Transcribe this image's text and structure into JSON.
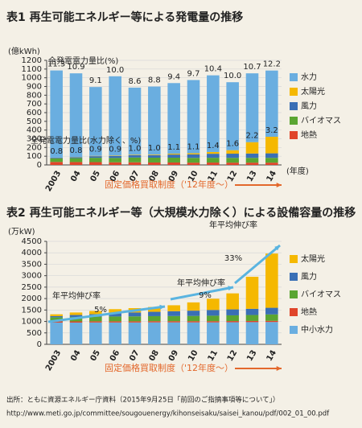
{
  "chart_data": [
    {
      "type": "bar",
      "stacked": true,
      "title": "表1 再生可能エネルギー等による発電量の推移",
      "ylabel": "(億kWh)",
      "xlabel": "(年度)",
      "categories": [
        "2003",
        "04",
        "05",
        "06",
        "07",
        "08",
        "09",
        "10",
        "11",
        "12",
        "13",
        "14"
      ],
      "series": [
        {
          "name": "水力",
          "color": "#6aaee0",
          "values": [
            1000,
            960,
            790,
            910,
            770,
            780,
            810,
            840,
            880,
            780,
            790,
            760
          ]
        },
        {
          "name": "太陽光",
          "color": "#f5b800",
          "values": [
            2,
            3,
            4,
            5,
            6,
            7,
            10,
            13,
            20,
            40,
            130,
            190
          ]
        },
        {
          "name": "風力",
          "color": "#3a6fb5",
          "values": [
            8,
            10,
            18,
            22,
            26,
            29,
            36,
            40,
            46,
            48,
            50,
            52
          ]
        },
        {
          "name": "バイオマス",
          "color": "#5aa532",
          "values": [
            40,
            45,
            50,
            50,
            55,
            55,
            55,
            55,
            55,
            55,
            55,
            55
          ]
        },
        {
          "name": "地熱",
          "color": "#e0452a",
          "values": [
            34,
            33,
            32,
            30,
            30,
            28,
            28,
            26,
            27,
            26,
            26,
            26
          ]
        }
      ],
      "ylim": [
        0,
        1200
      ],
      "yticks": [
        0,
        100,
        200,
        300,
        400,
        500,
        600,
        700,
        800,
        900,
        1000,
        1100,
        1200
      ],
      "grid": true,
      "ratio_total": {
        "label": "全発電電力量比(%)",
        "values": [
          "11.3",
          "10.9",
          "9.1",
          "10.0",
          "8.6",
          "8.8",
          "9.4",
          "9.7",
          "10.4",
          "10.0",
          "10.7",
          "12.2"
        ]
      },
      "ratio_non_hydro": {
        "label": "全発電電力量比(水力除く、%)",
        "values": [
          "0.8",
          "0.8",
          "0.9",
          "0.9",
          "1.0",
          "1.0",
          "1.1",
          "1.1",
          "1.4",
          "1.6",
          "2.2",
          "3.2"
        ]
      },
      "policy_note": "固定価格買取制度（'12年度～）"
    },
    {
      "type": "bar",
      "stacked": true,
      "title": "表2 再生可能エネルギー等（大規模水力除く）による設備容量の推移",
      "ylabel": "(万kW)",
      "categories": [
        "2003",
        "04",
        "05",
        "06",
        "07",
        "08",
        "09",
        "10",
        "11",
        "12",
        "13",
        "14"
      ],
      "series": [
        {
          "name": "太陽光",
          "color": "#f5b800",
          "values": [
            80,
            110,
            140,
            170,
            190,
            210,
            260,
            360,
            490,
            700,
            1400,
            2370
          ]
        },
        {
          "name": "風力",
          "color": "#3a6fb5",
          "values": [
            50,
            90,
            110,
            150,
            170,
            190,
            210,
            230,
            250,
            260,
            270,
            290
          ]
        },
        {
          "name": "バイオマス",
          "color": "#5aa532",
          "values": [
            180,
            190,
            200,
            210,
            215,
            220,
            225,
            230,
            240,
            250,
            260,
            280
          ]
        },
        {
          "name": "地熱",
          "color": "#e0452a",
          "values": [
            52,
            52,
            52,
            52,
            52,
            52,
            52,
            52,
            52,
            52,
            52,
            52
          ]
        },
        {
          "name": "中小水力",
          "color": "#6aaee0",
          "values": [
            950,
            950,
            955,
            955,
            955,
            960,
            960,
            960,
            960,
            965,
            970,
            975
          ]
        }
      ],
      "ylim": [
        0,
        4500
      ],
      "yticks": [
        0,
        500,
        1000,
        1500,
        2000,
        2500,
        3000,
        3500,
        4000,
        4500
      ],
      "grid": true,
      "growth_notes": [
        {
          "label": "年平均伸び率",
          "value": "5%"
        },
        {
          "label": "年平均伸び率",
          "value": "9%"
        },
        {
          "label": "年平均伸び率",
          "value": "33%"
        }
      ],
      "policy_note": "固定価格買取制度（'12年度～）"
    }
  ],
  "source": {
    "line1": "出所：ともに資源エネルギー庁資料（2015年9月25日「前回のご指摘事項等について」）",
    "line2": "http://www.meti.go.jp/committee/sougouenergy/kihonseisaku/saisei_kanou/pdf/002_01_00.pdf"
  }
}
